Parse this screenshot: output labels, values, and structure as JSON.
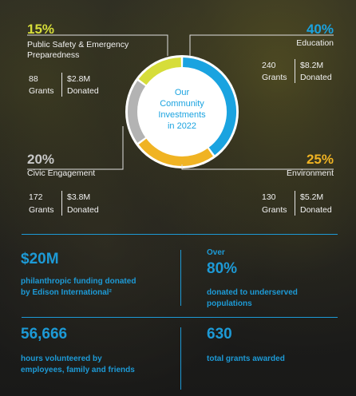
{
  "chart_data": {
    "type": "pie",
    "title": "Our Community Investments in 2022",
    "title_lines": [
      "Our",
      "Community",
      "Investments",
      "in 2022"
    ],
    "colors": {
      "Education": "#1aa3e0",
      "Environment": "#f0b323",
      "Civic Engagement": "#b3b3b3",
      "Public Safety & Emergency Preparedness": "#d6dd3a"
    },
    "slices": [
      {
        "label": "Education",
        "percent_label": "40%",
        "value": 40,
        "grants": "240",
        "grants_label": "Grants",
        "donated": "$8.2M",
        "donated_label": "Donated"
      },
      {
        "label": "Environment",
        "percent_label": "25%",
        "value": 25,
        "grants": "130",
        "grants_label": "Grants",
        "donated": "$5.2M",
        "donated_label": "Donated"
      },
      {
        "label": "Civic Engagement",
        "percent_label": "20%",
        "value": 20,
        "grants": "172",
        "grants_label": "Grants",
        "donated": "$3.8M",
        "donated_label": "Donated"
      },
      {
        "label": "Public Safety & Emergency Preparedness",
        "label_lines": [
          "Public Safety & Emergency",
          "Preparedness"
        ],
        "percent_label": "15%",
        "value": 15,
        "grants": "88",
        "grants_label": "Grants",
        "donated": "$2.8M",
        "donated_label": "Donated"
      }
    ]
  },
  "stats": {
    "funding": {
      "value": "$20M",
      "line1": "philanthropic funding donated",
      "line2": "by Edison International²"
    },
    "underserved": {
      "prefix": "Over",
      "value": "80%",
      "line1": "donated to underserved",
      "line2": "populations"
    },
    "hours": {
      "value": "56,666",
      "line1": "hours volunteered by",
      "line2": "employees, family and friends"
    },
    "grants": {
      "value": "630",
      "line1": "total grants awarded"
    }
  },
  "colors": {
    "accent_blue": "#1d9ad6",
    "divider": "#1d9ad6"
  }
}
